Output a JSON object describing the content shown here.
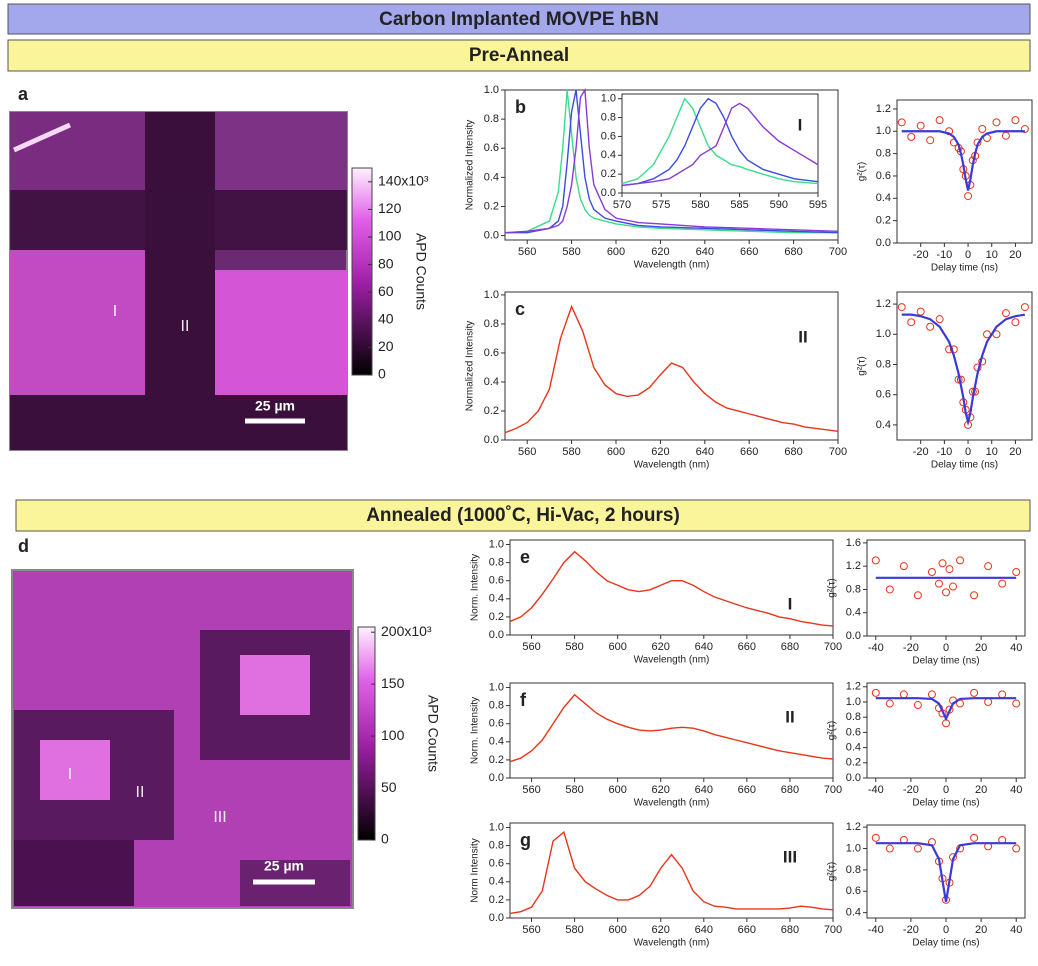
{
  "banners": [
    "Carbon Implanted MOVPE hBN",
    "Pre-Anneal",
    "Annealed (1000˚C, Hi-Vac, 2 hours)"
  ],
  "maps": [
    {
      "letter": "a",
      "regions": [
        "I",
        "II"
      ],
      "scale_bar": "25 µm",
      "colorbar": {
        "label": "APD Counts",
        "lim": [
          0,
          150
        ],
        "ticks": [
          0,
          20,
          40,
          60,
          80,
          100,
          120,
          {
            "value": 140,
            "label": "140x10³"
          }
        ]
      }
    },
    {
      "letter": "d",
      "regions": [
        "I",
        "II",
        "III"
      ],
      "scale_bar": "25 µm",
      "colorbar": {
        "label": "APD Counts",
        "lim": [
          0,
          205
        ],
        "ticks": [
          0,
          50,
          100,
          150,
          {
            "value": 200,
            "label": "200x10³"
          }
        ]
      }
    }
  ],
  "spectra": [
    {
      "letter": "b",
      "tag": "I",
      "ylabel": "Normalized Intensity",
      "xlabel": "Wavelength (nm)",
      "xlim": [
        550,
        700
      ],
      "ylim": [
        -0.03,
        1.0
      ],
      "xticks": [
        560,
        580,
        600,
        620,
        640,
        660,
        680,
        700
      ],
      "yticks": [
        {
          "value": 0,
          "label": "0.0"
        },
        0.2,
        0.4,
        0.6,
        0.8,
        {
          "value": 1,
          "label": "1.0"
        }
      ],
      "x": [
        550,
        560,
        570,
        574,
        576,
        578,
        580,
        582,
        584,
        586,
        588,
        590,
        595,
        600,
        610,
        620,
        640,
        660,
        680,
        700
      ],
      "series": [
        {
          "color": "#3cdc8c",
          "values": [
            0.02,
            0.03,
            0.1,
            0.3,
            0.6,
            1.0,
            0.7,
            0.4,
            0.25,
            0.18,
            0.14,
            0.12,
            0.1,
            0.08,
            0.06,
            0.05,
            0.04,
            0.03,
            0.02,
            0.02
          ]
        },
        {
          "color": "#3a4de0",
          "values": [
            0.02,
            0.02,
            0.05,
            0.1,
            0.2,
            0.5,
            0.85,
            1.0,
            0.7,
            0.4,
            0.25,
            0.18,
            0.12,
            0.1,
            0.07,
            0.06,
            0.05,
            0.04,
            0.03,
            0.02
          ]
        },
        {
          "color": "#8a3ad8",
          "values": [
            0.02,
            0.03,
            0.05,
            0.07,
            0.1,
            0.2,
            0.35,
            0.6,
            0.95,
            1.0,
            0.6,
            0.35,
            0.18,
            0.12,
            0.09,
            0.08,
            0.06,
            0.05,
            0.04,
            0.03
          ]
        }
      ],
      "inset": {
        "xlim": [
          570,
          595
        ],
        "ylim": [
          0,
          1.05
        ],
        "xticks": [
          570,
          575,
          580,
          585,
          590,
          595
        ],
        "yticks": [
          {
            "value": 0,
            "label": "0.0"
          },
          0.2,
          0.4,
          0.6,
          0.8,
          {
            "value": 1,
            "label": "1.0"
          }
        ],
        "x": [
          570,
          572,
          574,
          576,
          577,
          578,
          579,
          580,
          581,
          582,
          583,
          584,
          585,
          586,
          588,
          590,
          592,
          595
        ],
        "series": [
          {
            "color": "#3cdc8c",
            "values": [
              0.1,
              0.15,
              0.3,
              0.6,
              0.8,
              1.0,
              0.9,
              0.7,
              0.5,
              0.4,
              0.35,
              0.3,
              0.28,
              0.25,
              0.2,
              0.15,
              0.12,
              0.1
            ]
          },
          {
            "color": "#3a4de0",
            "values": [
              0.08,
              0.1,
              0.15,
              0.25,
              0.35,
              0.5,
              0.7,
              0.9,
              1.0,
              0.95,
              0.8,
              0.6,
              0.45,
              0.35,
              0.25,
              0.2,
              0.15,
              0.12
            ]
          },
          {
            "color": "#8a3ad8",
            "values": [
              0.08,
              0.1,
              0.12,
              0.15,
              0.2,
              0.25,
              0.3,
              0.4,
              0.45,
              0.5,
              0.7,
              0.9,
              0.95,
              0.9,
              0.7,
              0.55,
              0.45,
              0.3
            ]
          }
        ]
      }
    },
    {
      "letter": "c",
      "tag": "II",
      "ylabel": "Normalized Intensity",
      "xlabel": "Wavelength (nm)",
      "xlim": [
        550,
        700
      ],
      "ylim": [
        0,
        1.02
      ],
      "xticks": [
        560,
        580,
        600,
        620,
        640,
        660,
        680,
        700
      ],
      "yticks": [
        {
          "value": 0,
          "label": "0.0"
        },
        0.2,
        0.4,
        0.6,
        0.8,
        {
          "value": 1,
          "label": "1.0"
        }
      ],
      "x": [
        550,
        555,
        560,
        565,
        570,
        575,
        580,
        585,
        590,
        595,
        600,
        605,
        610,
        615,
        620,
        625,
        630,
        635,
        640,
        645,
        650,
        655,
        660,
        665,
        670,
        675,
        680,
        685,
        690,
        695,
        700
      ],
      "series": [
        {
          "color": "#e8351a",
          "values": [
            0.05,
            0.08,
            0.12,
            0.2,
            0.35,
            0.7,
            0.92,
            0.75,
            0.5,
            0.38,
            0.32,
            0.3,
            0.31,
            0.36,
            0.45,
            0.53,
            0.5,
            0.4,
            0.32,
            0.26,
            0.22,
            0.2,
            0.18,
            0.16,
            0.14,
            0.12,
            0.11,
            0.09,
            0.08,
            0.07,
            0.06
          ]
        }
      ]
    },
    {
      "letter": "e",
      "tag": "I",
      "ylabel": "Norm. Intensity",
      "xlabel": "Wavelength (nm)",
      "xlim": [
        550,
        700
      ],
      "ylim": [
        0,
        1.05
      ],
      "xticks": [
        560,
        580,
        600,
        620,
        640,
        660,
        680,
        700
      ],
      "yticks": [
        {
          "value": 0,
          "label": "0.0"
        },
        0.2,
        0.4,
        0.6,
        0.8,
        {
          "value": 1,
          "label": "1.0"
        }
      ],
      "x": [
        550,
        555,
        560,
        565,
        570,
        575,
        580,
        585,
        590,
        595,
        600,
        605,
        610,
        615,
        620,
        625,
        630,
        635,
        640,
        645,
        650,
        655,
        660,
        665,
        670,
        675,
        680,
        685,
        690,
        695,
        700
      ],
      "series": [
        {
          "color": "#e8351a",
          "values": [
            0.15,
            0.2,
            0.3,
            0.45,
            0.62,
            0.8,
            0.92,
            0.82,
            0.7,
            0.6,
            0.55,
            0.5,
            0.48,
            0.5,
            0.55,
            0.6,
            0.6,
            0.55,
            0.48,
            0.42,
            0.38,
            0.34,
            0.3,
            0.27,
            0.24,
            0.2,
            0.18,
            0.15,
            0.13,
            0.11,
            0.1
          ]
        }
      ]
    },
    {
      "letter": "f",
      "tag": "II",
      "ylabel": "Norm. Intensity",
      "xlabel": "Wavelength (nm)",
      "xlim": [
        550,
        700
      ],
      "ylim": [
        0,
        1.05
      ],
      "xticks": [
        560,
        580,
        600,
        620,
        640,
        660,
        680,
        700
      ],
      "yticks": [
        {
          "value": 0,
          "label": "0.0"
        },
        0.2,
        0.4,
        0.6,
        0.8,
        {
          "value": 1,
          "label": "1.0"
        }
      ],
      "x": [
        550,
        555,
        560,
        565,
        570,
        575,
        580,
        585,
        590,
        595,
        600,
        605,
        610,
        615,
        620,
        625,
        630,
        635,
        640,
        645,
        650,
        655,
        660,
        665,
        670,
        675,
        680,
        685,
        690,
        695,
        700
      ],
      "series": [
        {
          "color": "#e8351a",
          "values": [
            0.18,
            0.22,
            0.3,
            0.42,
            0.6,
            0.78,
            0.92,
            0.82,
            0.72,
            0.65,
            0.6,
            0.56,
            0.53,
            0.52,
            0.53,
            0.55,
            0.56,
            0.55,
            0.52,
            0.48,
            0.45,
            0.42,
            0.39,
            0.36,
            0.33,
            0.3,
            0.28,
            0.26,
            0.24,
            0.22,
            0.21
          ]
        }
      ]
    },
    {
      "letter": "g",
      "tag": "III",
      "ylabel": "Norm Intensity",
      "xlabel": "Wavelength (nm)",
      "xlim": [
        550,
        700
      ],
      "ylim": [
        0,
        1.05
      ],
      "xticks": [
        560,
        580,
        600,
        620,
        640,
        660,
        680,
        700
      ],
      "yticks": [
        {
          "value": 0,
          "label": "0.0"
        },
        0.2,
        0.4,
        0.6,
        0.8,
        {
          "value": 1,
          "label": "1.0"
        }
      ],
      "x": [
        550,
        555,
        560,
        565,
        570,
        575,
        580,
        585,
        590,
        595,
        600,
        605,
        610,
        615,
        620,
        625,
        630,
        635,
        640,
        645,
        650,
        655,
        660,
        665,
        670,
        675,
        680,
        685,
        690,
        695,
        700
      ],
      "series": [
        {
          "color": "#e8351a",
          "values": [
            0.05,
            0.07,
            0.12,
            0.3,
            0.85,
            0.95,
            0.55,
            0.4,
            0.32,
            0.25,
            0.2,
            0.2,
            0.25,
            0.35,
            0.55,
            0.7,
            0.55,
            0.3,
            0.18,
            0.13,
            0.12,
            0.1,
            0.1,
            0.1,
            0.1,
            0.1,
            0.11,
            0.13,
            0.12,
            0.1,
            0.09
          ]
        }
      ]
    }
  ],
  "g2": [
    {
      "ylabel": "g²(τ)",
      "xlabel": "Delay time (ns)",
      "xlim": [
        -30,
        27
      ],
      "ylim": [
        0,
        1.28
      ],
      "xticks": [
        -20,
        -10,
        0,
        10,
        20
      ],
      "yticks": [
        {
          "value": 0,
          "label": "0.0"
        },
        0.2,
        0.4,
        0.6,
        0.8,
        {
          "value": 1,
          "label": "1.0"
        },
        1.2
      ],
      "x": [
        -28,
        -24,
        -20,
        -16,
        -12,
        -8,
        -6,
        -4,
        -3,
        -2,
        -1,
        0,
        1,
        2,
        3,
        4,
        6,
        8,
        12,
        16,
        20,
        24
      ],
      "data": [
        1.08,
        0.95,
        1.05,
        0.92,
        1.1,
        1.0,
        0.9,
        0.85,
        0.82,
        0.66,
        0.6,
        0.42,
        0.52,
        0.74,
        0.78,
        0.9,
        1.02,
        0.94,
        1.08,
        0.96,
        1.1,
        1.02
      ],
      "fit": [
        1,
        1,
        1,
        1,
        1,
        0.98,
        0.95,
        0.88,
        0.8,
        0.7,
        0.57,
        0.47,
        0.57,
        0.7,
        0.8,
        0.88,
        0.95,
        0.98,
        1,
        1,
        1,
        1
      ]
    },
    {
      "ylabel": "g²(τ)",
      "xlabel": "Delay time (ns)",
      "xlim": [
        -30,
        27
      ],
      "ylim": [
        0.3,
        1.28
      ],
      "xticks": [
        -20,
        -10,
        0,
        10,
        20
      ],
      "yticks": [
        0.4,
        0.6,
        0.8,
        {
          "value": 1,
          "label": "1.0"
        },
        1.2
      ],
      "x": [
        -28,
        -24,
        -20,
        -16,
        -12,
        -8,
        -6,
        -4,
        -3,
        -2,
        -1,
        0,
        1,
        2,
        3,
        4,
        6,
        8,
        12,
        16,
        20,
        24
      ],
      "data": [
        1.18,
        1.08,
        1.15,
        1.05,
        1.1,
        0.9,
        0.9,
        0.7,
        0.7,
        0.55,
        0.5,
        0.4,
        0.45,
        0.62,
        0.62,
        0.78,
        0.82,
        1.0,
        1.0,
        1.14,
        1.08,
        1.18
      ],
      "fit": [
        1.13,
        1.13,
        1.12,
        1.1,
        1.05,
        0.95,
        0.86,
        0.74,
        0.66,
        0.58,
        0.48,
        0.42,
        0.48,
        0.58,
        0.66,
        0.74,
        0.86,
        0.95,
        1.05,
        1.1,
        1.12,
        1.13
      ]
    },
    {
      "ylabel": "g²(τ)",
      "xlabel": "Delay time (ns)",
      "xlim": [
        -45,
        45
      ],
      "ylim": [
        0,
        1.65
      ],
      "xticks": [
        -40,
        -20,
        0,
        20,
        40
      ],
      "yticks": [
        {
          "value": 0,
          "label": "0.0"
        },
        0.4,
        0.8,
        1.2,
        1.6
      ],
      "x": [
        -40,
        -32,
        -24,
        -16,
        -8,
        -4,
        -2,
        0,
        2,
        4,
        8,
        16,
        24,
        32,
        40
      ],
      "data": [
        1.3,
        0.8,
        1.2,
        0.7,
        1.1,
        0.9,
        1.25,
        0.75,
        1.15,
        0.85,
        1.3,
        0.7,
        1.2,
        0.9,
        1.1
      ],
      "fit": [
        1,
        1,
        1,
        1,
        1,
        1,
        1,
        1,
        1,
        1,
        1,
        1,
        1,
        1,
        1
      ]
    },
    {
      "ylabel": "g²(τ)",
      "xlabel": "Delay time (ns)",
      "xlim": [
        -45,
        45
      ],
      "ylim": [
        0,
        1.25
      ],
      "xticks": [
        -40,
        -20,
        0,
        20,
        40
      ],
      "yticks": [
        {
          "value": 0,
          "label": "0.0"
        },
        0.2,
        0.4,
        0.6,
        0.8,
        {
          "value": 1,
          "label": "1.0"
        },
        1.2
      ],
      "x": [
        -40,
        -32,
        -24,
        -16,
        -8,
        -4,
        -2,
        0,
        2,
        4,
        8,
        16,
        24,
        32,
        40
      ],
      "data": [
        1.12,
        0.98,
        1.1,
        0.96,
        1.1,
        0.92,
        0.85,
        0.72,
        0.9,
        1.02,
        0.98,
        1.12,
        1.0,
        1.1,
        0.98
      ],
      "fit": [
        1.05,
        1.05,
        1.05,
        1.05,
        1.04,
        0.98,
        0.88,
        0.78,
        0.88,
        0.98,
        1.04,
        1.05,
        1.05,
        1.05,
        1.05
      ]
    },
    {
      "ylabel": "g²(τ)",
      "xlabel": "Delay time (ns)",
      "xlim": [
        -45,
        45
      ],
      "ylim": [
        0.35,
        1.22
      ],
      "xticks": [
        -40,
        -20,
        0,
        20,
        40
      ],
      "yticks": [
        0.4,
        0.6,
        0.8,
        {
          "value": 1,
          "label": "1.0"
        },
        1.2
      ],
      "x": [
        -40,
        -32,
        -24,
        -16,
        -8,
        -4,
        -2,
        0,
        2,
        4,
        8,
        16,
        24,
        32,
        40
      ],
      "data": [
        1.1,
        1.0,
        1.08,
        1.0,
        1.06,
        0.88,
        0.72,
        0.52,
        0.68,
        0.92,
        1.0,
        1.1,
        1.02,
        1.08,
        1.0
      ],
      "fit": [
        1.05,
        1.05,
        1.05,
        1.05,
        1.03,
        0.9,
        0.7,
        0.5,
        0.7,
        0.9,
        1.03,
        1.05,
        1.05,
        1.05,
        1.05
      ]
    }
  ]
}
